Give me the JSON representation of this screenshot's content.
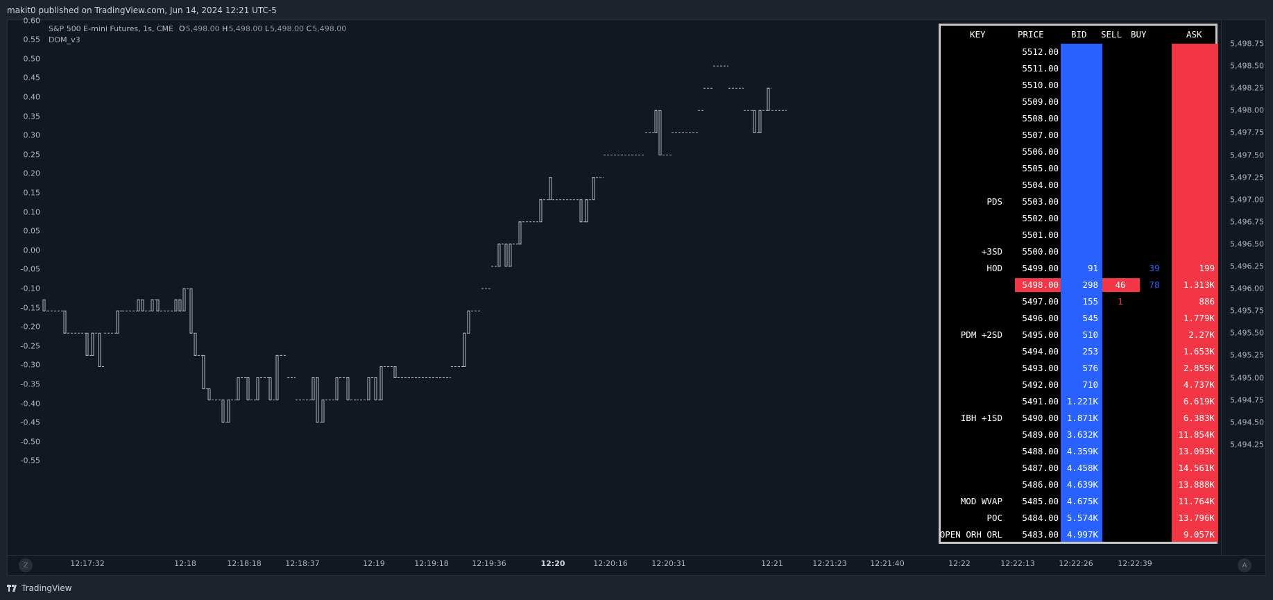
{
  "header": {
    "published_text": "makit0 published on TradingView.com, Jun 14, 2024 12:21 UTC-5"
  },
  "legend": {
    "symbol": "S&P 500 E-mini Futures, 1s, CME",
    "open_label": "O",
    "open": "5,498.00",
    "high_label": "H",
    "high": "5,498.00",
    "low_label": "L",
    "low": "5,498.00",
    "close_label": "C",
    "close": "5,498.00",
    "indicator": "DOM_v3"
  },
  "left_axis": [
    "0.60",
    "0.55",
    "0.50",
    "0.45",
    "0.40",
    "0.35",
    "0.30",
    "0.25",
    "0.20",
    "0.15",
    "0.10",
    "0.05",
    "0.00",
    "-0.05",
    "-0.10",
    "-0.15",
    "-0.20",
    "-0.25",
    "-0.30",
    "-0.35",
    "-0.40",
    "-0.45",
    "-0.50",
    "-0.55"
  ],
  "right_axis": [
    "5,498.75",
    "5,498.50",
    "5,498.25",
    "5,498.00",
    "5,497.75",
    "5,497.50",
    "5,497.25",
    "5,497.00",
    "5,496.75",
    "5,496.50",
    "5,496.25",
    "5,496.00",
    "5,495.75",
    "5,495.50",
    "5,495.25",
    "5,495.00",
    "5,494.75",
    "5,494.50",
    "5,494.25"
  ],
  "time_axis": [
    {
      "label": "12:17:32",
      "bold": false
    },
    {
      "label": "12:18",
      "bold": false
    },
    {
      "label": "12:18:18",
      "bold": false
    },
    {
      "label": "12:18:37",
      "bold": false
    },
    {
      "label": "12:19",
      "bold": false
    },
    {
      "label": "12:19:18",
      "bold": false
    },
    {
      "label": "12:19:36",
      "bold": false
    },
    {
      "label": "12:20",
      "bold": true
    },
    {
      "label": "12:20:16",
      "bold": false
    },
    {
      "label": "12:20:31",
      "bold": false
    },
    {
      "label": "12:21",
      "bold": false
    },
    {
      "label": "12:21:23",
      "bold": false
    },
    {
      "label": "12:21:40",
      "bold": false
    },
    {
      "label": "12:22",
      "bold": false
    },
    {
      "label": "12:22:13",
      "bold": false
    },
    {
      "label": "12:22:26",
      "bold": false
    },
    {
      "label": "12:22:39",
      "bold": false
    }
  ],
  "corner_buttons": {
    "left": "Z",
    "right": "A"
  },
  "brand": {
    "name": "TradingView"
  },
  "colors": {
    "background": "#131722",
    "bid": "#2962ff",
    "ask": "#f23645",
    "candle": "#b2b5be"
  },
  "dom": {
    "headers": {
      "key": "KEY",
      "price": "PRICE",
      "bid": "BID",
      "sell": "SELL",
      "buy": "BUY",
      "ask": "ASK"
    },
    "rows": [
      {
        "key": "",
        "price": "5512.00",
        "bid": "",
        "sell": "",
        "buy": "",
        "ask": ""
      },
      {
        "key": "",
        "price": "5511.00",
        "bid": "",
        "sell": "",
        "buy": "",
        "ask": ""
      },
      {
        "key": "",
        "price": "5510.00",
        "bid": "",
        "sell": "",
        "buy": "",
        "ask": ""
      },
      {
        "key": "",
        "price": "5509.00",
        "bid": "",
        "sell": "",
        "buy": "",
        "ask": ""
      },
      {
        "key": "",
        "price": "5508.00",
        "bid": "",
        "sell": "",
        "buy": "",
        "ask": ""
      },
      {
        "key": "",
        "price": "5507.00",
        "bid": "",
        "sell": "",
        "buy": "",
        "ask": ""
      },
      {
        "key": "",
        "price": "5506.00",
        "bid": "",
        "sell": "",
        "buy": "",
        "ask": ""
      },
      {
        "key": "",
        "price": "5505.00",
        "bid": "",
        "sell": "",
        "buy": "",
        "ask": ""
      },
      {
        "key": "",
        "price": "5504.00",
        "bid": "",
        "sell": "",
        "buy": "",
        "ask": ""
      },
      {
        "key": "PDS",
        "price": "5503.00",
        "bid": "",
        "sell": "",
        "buy": "",
        "ask": ""
      },
      {
        "key": "",
        "price": "5502.00",
        "bid": "",
        "sell": "",
        "buy": "",
        "ask": ""
      },
      {
        "key": "",
        "price": "5501.00",
        "bid": "",
        "sell": "",
        "buy": "",
        "ask": ""
      },
      {
        "key": "+3SD",
        "price": "5500.00",
        "bid": "",
        "sell": "",
        "buy": "",
        "ask": ""
      },
      {
        "key": "HOD",
        "price": "5499.00",
        "bid": "91",
        "sell": "",
        "buy": "39",
        "ask": "199"
      },
      {
        "key": "",
        "price": "5498.00",
        "bid": "298",
        "sell": "46",
        "buy": "78",
        "ask": "1.313K",
        "current": true
      },
      {
        "key": "",
        "price": "5497.00",
        "bid": "155",
        "sell": "1",
        "buy": "",
        "ask": "886"
      },
      {
        "key": "",
        "price": "5496.00",
        "bid": "545",
        "sell": "",
        "buy": "",
        "ask": "1.779K"
      },
      {
        "key": "PDM +2SD",
        "price": "5495.00",
        "bid": "510",
        "sell": "",
        "buy": "",
        "ask": "2.27K"
      },
      {
        "key": "",
        "price": "5494.00",
        "bid": "253",
        "sell": "",
        "buy": "",
        "ask": "1.653K"
      },
      {
        "key": "",
        "price": "5493.00",
        "bid": "576",
        "sell": "",
        "buy": "",
        "ask": "2.855K"
      },
      {
        "key": "",
        "price": "5492.00",
        "bid": "710",
        "sell": "",
        "buy": "",
        "ask": "4.737K"
      },
      {
        "key": "",
        "price": "5491.00",
        "bid": "1.221K",
        "sell": "",
        "buy": "",
        "ask": "6.619K"
      },
      {
        "key": "IBH +1SD",
        "price": "5490.00",
        "bid": "1.871K",
        "sell": "",
        "buy": "",
        "ask": "6.383K"
      },
      {
        "key": "",
        "price": "5489.00",
        "bid": "3.632K",
        "sell": "",
        "buy": "",
        "ask": "11.854K"
      },
      {
        "key": "",
        "price": "5488.00",
        "bid": "4.359K",
        "sell": "",
        "buy": "",
        "ask": "13.093K"
      },
      {
        "key": "",
        "price": "5487.00",
        "bid": "4.458K",
        "sell": "",
        "buy": "",
        "ask": "14.561K"
      },
      {
        "key": "",
        "price": "5486.00",
        "bid": "4.639K",
        "sell": "",
        "buy": "",
        "ask": "13.888K"
      },
      {
        "key": "MOD WVAP",
        "price": "5485.00",
        "bid": "4.675K",
        "sell": "",
        "buy": "",
        "ask": "11.764K"
      },
      {
        "key": "POC",
        "price": "5484.00",
        "bid": "5.574K",
        "sell": "",
        "buy": "",
        "ask": "13.796K"
      },
      {
        "key": "OPEN ORH ORL",
        "price": "5483.00",
        "bid": "4.997K",
        "sell": "",
        "buy": "",
        "ask": "9.057K"
      }
    ]
  }
}
